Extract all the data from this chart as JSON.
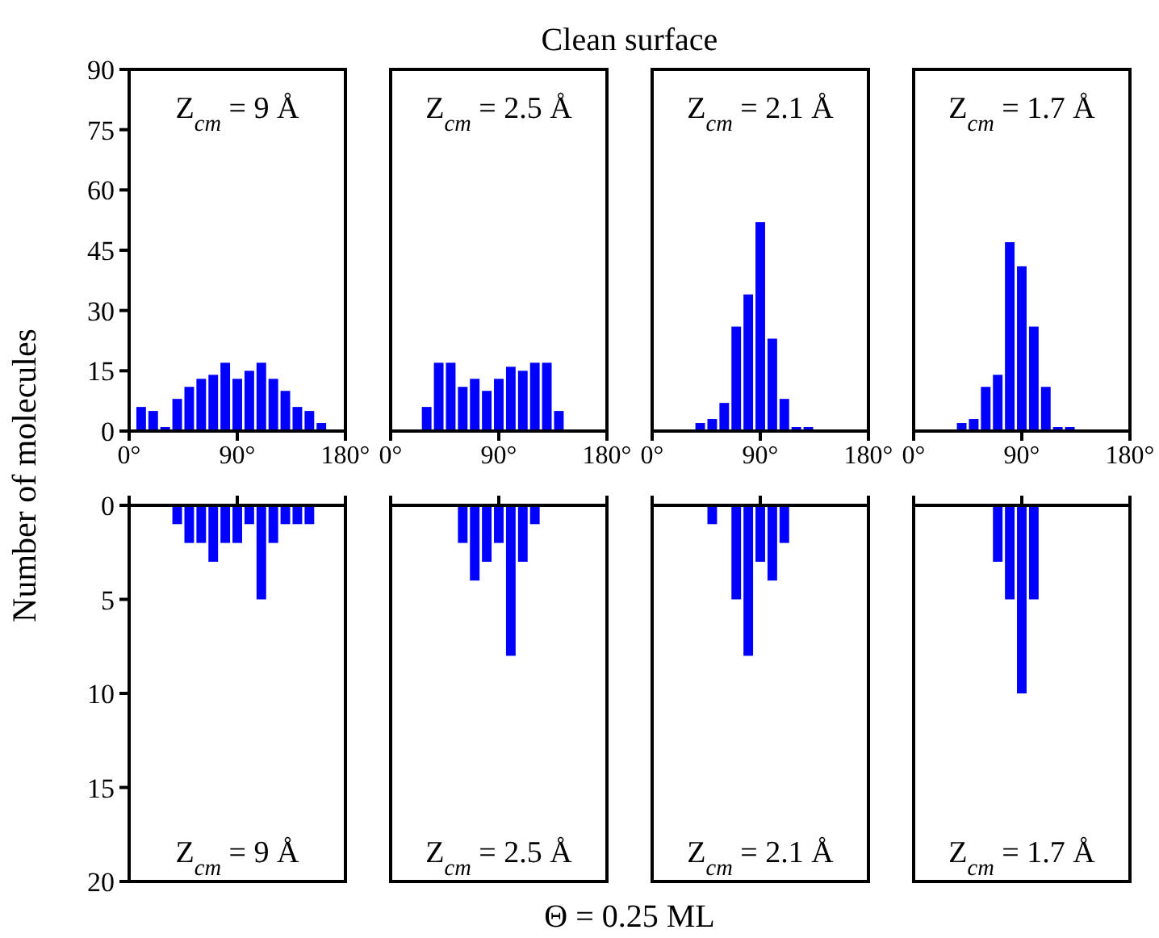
{
  "chart_data": [
    {
      "type": "bar",
      "ylabel": "Number of molecules",
      "annotations": [
        "Z$_{cm}$ = 9 Å"
      ],
      "x": [
        10,
        20,
        30,
        40,
        50,
        60,
        70,
        80,
        90,
        100,
        110,
        120,
        130,
        140,
        150,
        160
      ],
      "values": [
        6,
        5,
        1,
        8,
        11,
        13,
        14,
        17,
        13,
        15,
        17,
        13,
        10,
        6,
        5,
        2
      ],
      "color": "#0000ff",
      "xlim": [
        0,
        180
      ],
      "xticks": [
        {
          "value": 0,
          "label": "0°"
        },
        {
          "value": 90,
          "label": "90°"
        },
        {
          "value": 180,
          "label": "180°"
        }
      ],
      "ylim": [
        0,
        90
      ],
      "yticks": [
        0,
        15,
        30,
        45,
        60,
        75,
        90
      ],
      "grid": false
    },
    {
      "type": "bar",
      "title": "Clean surface",
      "annotations": [
        "Z$_{cm}$ = 2.5 Å"
      ],
      "x": [
        30,
        40,
        50,
        60,
        70,
        80,
        90,
        100,
        110,
        120,
        130,
        140
      ],
      "values": [
        6,
        17,
        17,
        11,
        13,
        10,
        13,
        16,
        15,
        17,
        17,
        5
      ],
      "color": "#0000ff",
      "xlim": [
        0,
        180
      ],
      "xticks": [
        {
          "value": 0,
          "label": "0°"
        },
        {
          "value": 90,
          "label": "90°"
        },
        {
          "value": 180,
          "label": "180°"
        }
      ],
      "ylim": [
        0,
        90
      ],
      "yticks": [
        0,
        15,
        30,
        45,
        60,
        75,
        90
      ],
      "tick_labels": "x",
      "grid": false
    },
    {
      "type": "bar",
      "annotations": [
        "Z$_{cm}$ = 2.1 Å"
      ],
      "x": [
        40,
        50,
        60,
        70,
        80,
        90,
        100,
        110,
        120,
        130
      ],
      "values": [
        2,
        3,
        7,
        26,
        34,
        52,
        23,
        8,
        1,
        1
      ],
      "color": "#0000ff",
      "xlim": [
        0,
        180
      ],
      "xticks": [
        {
          "value": 0,
          "label": "0°"
        },
        {
          "value": 90,
          "label": "90°"
        },
        {
          "value": 180,
          "label": "180°"
        }
      ],
      "ylim": [
        0,
        90
      ],
      "yticks": [
        0,
        15,
        30,
        45,
        60,
        75,
        90
      ],
      "tick_labels": "x",
      "grid": false
    },
    {
      "type": "bar",
      "annotations": [
        "Z$_{cm}$ = 1.7 Å"
      ],
      "x": [
        40,
        50,
        60,
        70,
        80,
        90,
        100,
        110,
        120,
        130
      ],
      "values": [
        2,
        3,
        11,
        14,
        47,
        41,
        26,
        11,
        1,
        1
      ],
      "color": "#0000ff",
      "xlim": [
        0,
        180
      ],
      "xticks": [
        {
          "value": 0,
          "label": "0°"
        },
        {
          "value": 90,
          "label": "90°"
        },
        {
          "value": 180,
          "label": "180°"
        }
      ],
      "ylim": [
        0,
        90
      ],
      "yticks": [
        0,
        15,
        30,
        45,
        60,
        75,
        90
      ],
      "tick_labels": "x",
      "grid": false
    },
    {
      "type": "bar",
      "annotations": [
        "Z$_{cm}$ = 9 Å"
      ],
      "x": [
        40,
        50,
        60,
        70,
        80,
        90,
        100,
        110,
        120,
        130,
        140,
        150
      ],
      "values": [
        1,
        2,
        2,
        3,
        2,
        2,
        1,
        5,
        2,
        1,
        1,
        1
      ],
      "color": "#0000ff",
      "xlim": [
        0,
        180
      ],
      "xticks": [
        {
          "value": 0,
          "label": null
        },
        {
          "value": 90,
          "label": null
        },
        {
          "value": 180,
          "label": null
        }
      ],
      "ylim": [
        20,
        0
      ],
      "yticks": [
        0,
        5,
        10,
        15,
        20
      ],
      "tick_labels": "y",
      "grid": false
    },
    {
      "type": "bar",
      "xlabel": "Θ = 0.25 ML",
      "annotations": [
        "Z$_{cm}$ = 2.5 Å"
      ],
      "x": [
        60,
        70,
        80,
        90,
        100,
        110,
        120
      ],
      "values": [
        2,
        4,
        3,
        2,
        8,
        3,
        1
      ],
      "color": "#0000ff",
      "xlim": [
        0,
        180
      ],
      "xticks": [
        {
          "value": 0,
          "label": null
        },
        {
          "value": 90,
          "label": null
        },
        {
          "value": 180,
          "label": null
        }
      ],
      "ylim": [
        20,
        0
      ],
      "yticks": [
        0,
        5,
        10,
        15,
        20
      ],
      "tick_labels": false,
      "grid": false
    },
    {
      "type": "bar",
      "annotations": [
        "Z$_{cm}$ = 2.1 Å"
      ],
      "x": [
        50,
        70,
        80,
        90,
        100,
        110
      ],
      "values": [
        1,
        5,
        8,
        3,
        4,
        2
      ],
      "color": "#0000ff",
      "xlim": [
        0,
        180
      ],
      "xticks": [
        {
          "value": 0,
          "label": null
        },
        {
          "value": 90,
          "label": null
        },
        {
          "value": 180,
          "label": null
        }
      ],
      "ylim": [
        20,
        0
      ],
      "yticks": [
        0,
        5,
        10,
        15,
        20
      ],
      "tick_labels": false,
      "grid": false
    },
    {
      "type": "bar",
      "annotations": [
        "Z$_{cm}$ = 1.7 Å"
      ],
      "x": [
        70,
        80,
        90,
        100
      ],
      "values": [
        3,
        5,
        10,
        5
      ],
      "color": "#0000ff",
      "xlim": [
        0,
        180
      ],
      "xticks": [
        {
          "value": 0,
          "label": null
        },
        {
          "value": 90,
          "label": null
        },
        {
          "value": 180,
          "label": null
        }
      ],
      "ylim": [
        20,
        0
      ],
      "yticks": [
        0,
        5,
        10,
        15,
        20
      ],
      "tick_labels": false,
      "grid": false
    }
  ]
}
